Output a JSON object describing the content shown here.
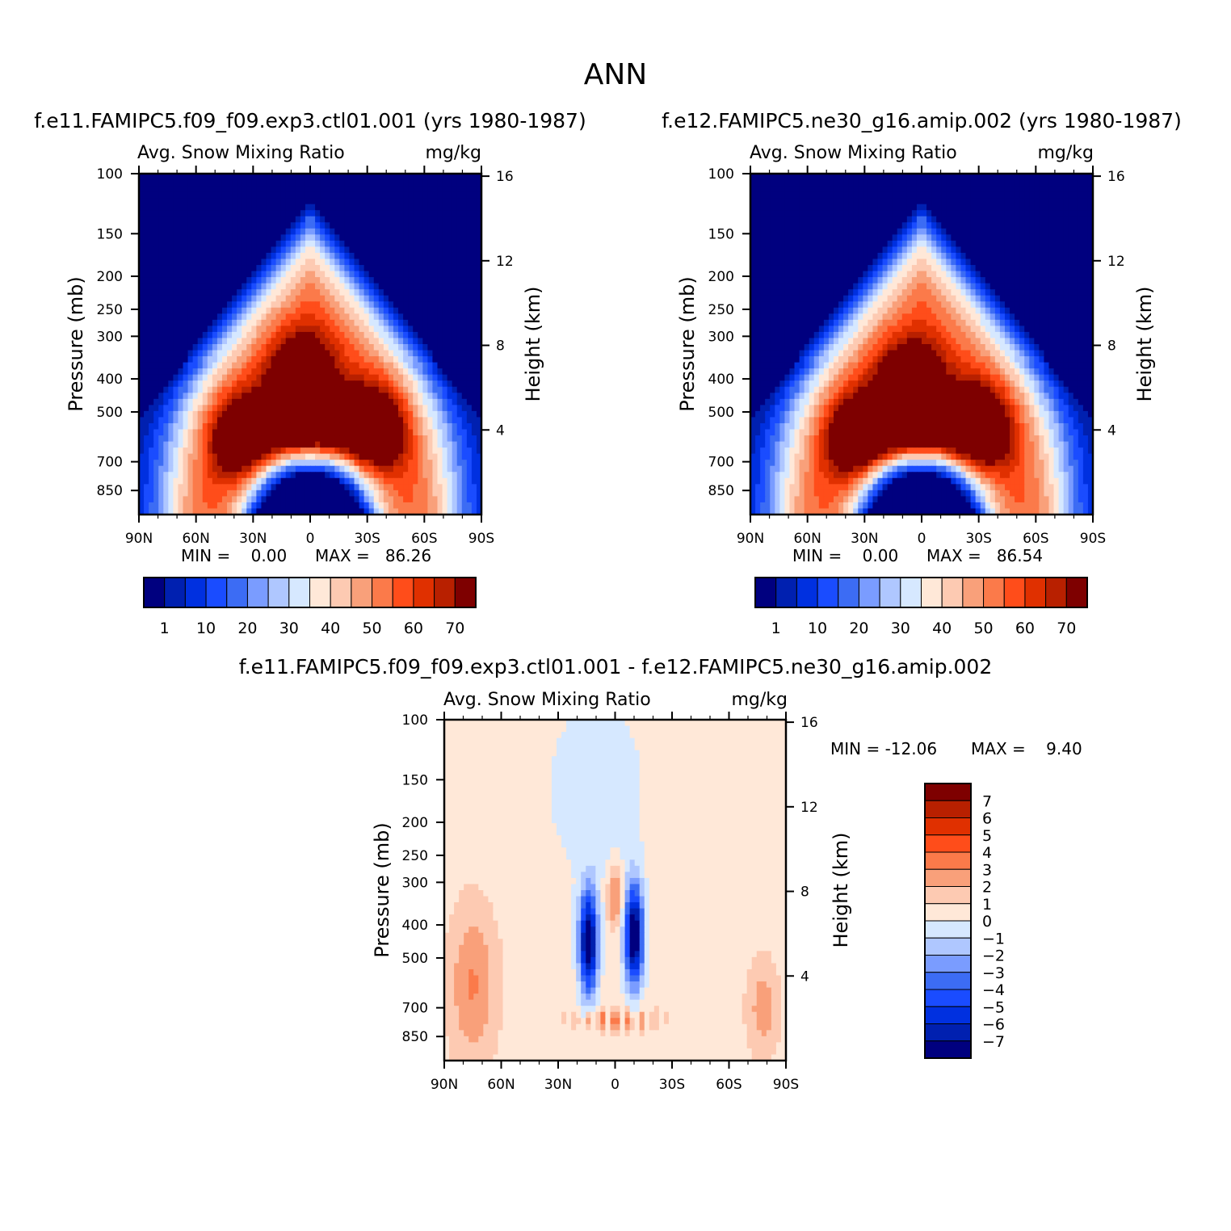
{
  "figure": {
    "title": "ANN"
  },
  "colors": {
    "abs_levels": [
      "#00007f",
      "#0020b0",
      "#0030e0",
      "#1a4cff",
      "#3c6cf4",
      "#7a9cff",
      "#afc7ff",
      "#d6e8ff",
      "#ffe8d8",
      "#fdcab2",
      "#f9a07a",
      "#fb7a4a",
      "#ff4d1a",
      "#e03000",
      "#b82000",
      "#7e0000"
    ],
    "diff_levels": [
      "#00007f",
      "#0020b0",
      "#0030e0",
      "#1a4cff",
      "#3c6cf4",
      "#7a9cff",
      "#afc7ff",
      "#d6e8ff",
      "#ffe8d8",
      "#fdcab2",
      "#f9a07a",
      "#fb7a4a",
      "#ff4d1a",
      "#e03000",
      "#b82000",
      "#7e0000"
    ]
  },
  "chart_data": [
    {
      "type": "heatmap",
      "title": "f.e11.FAMIPC5.f09_f09.exp3.ctl01.001 (yrs 1980-1987)",
      "left_string": "Avg. Snow Mixing Ratio",
      "right_string": "mg/kg",
      "ylabel": "Pressure (mb)",
      "ylabel_right": "Height (km)",
      "x_ticks": [
        "90N",
        "60N",
        "30N",
        "0",
        "30S",
        "60S",
        "90S"
      ],
      "y_ticks": [
        "100",
        "150",
        "200",
        "250",
        "300",
        "400",
        "500",
        "700",
        "850"
      ],
      "y_values": [
        100,
        150,
        200,
        250,
        300,
        400,
        500,
        700,
        850
      ],
      "y_right_ticks": [
        "16",
        "12",
        "8",
        "4"
      ],
      "min_text": "MIN =    0.00",
      "max_text": "MAX =   86.26",
      "min": 0.0,
      "max": 86.26,
      "colorbar_labels": [
        "1",
        "10",
        "20",
        "30",
        "40",
        "50",
        "60",
        "70"
      ],
      "blobs": [
        {
          "lat": 35,
          "p": 600,
          "value": 80
        },
        {
          "lat": -33,
          "p": 560,
          "value": 80
        },
        {
          "lat": 5,
          "p": 400,
          "value": 78
        }
      ]
    },
    {
      "type": "heatmap",
      "title": "f.e12.FAMIPC5.ne30_g16.amip.002 (yrs 1980-1987)",
      "left_string": "Avg. Snow Mixing Ratio",
      "right_string": "mg/kg",
      "ylabel": "Pressure (mb)",
      "ylabel_right": "Height (km)",
      "x_ticks": [
        "90N",
        "60N",
        "30N",
        "0",
        "30S",
        "60S",
        "90S"
      ],
      "y_ticks": [
        "100",
        "150",
        "200",
        "250",
        "300",
        "400",
        "500",
        "700",
        "850"
      ],
      "y_values": [
        100,
        150,
        200,
        250,
        300,
        400,
        500,
        700,
        850
      ],
      "y_right_ticks": [
        "16",
        "12",
        "8",
        "4"
      ],
      "min_text": "MIN =    0.00",
      "max_text": "MAX =   86.54",
      "min": 0.0,
      "max": 86.54,
      "colorbar_labels": [
        "1",
        "10",
        "20",
        "30",
        "40",
        "50",
        "60",
        "70"
      ],
      "blobs": [
        {
          "lat": 33,
          "p": 600,
          "value": 80
        },
        {
          "lat": -30,
          "p": 560,
          "value": 82
        },
        {
          "lat": 7,
          "p": 430,
          "value": 80
        }
      ]
    },
    {
      "type": "heatmap",
      "title": "f.e11.FAMIPC5.f09_f09.exp3.ctl01.001 - f.e12.FAMIPC5.ne30_g16.amip.002",
      "left_string": "Avg. Snow Mixing Ratio",
      "right_string": "mg/kg",
      "ylabel": "Pressure (mb)",
      "ylabel_right": "Height (km)",
      "x_ticks": [
        "90N",
        "60N",
        "30N",
        "0",
        "30S",
        "60S",
        "90S"
      ],
      "y_ticks": [
        "100",
        "150",
        "200",
        "250",
        "300",
        "400",
        "500",
        "700",
        "850"
      ],
      "y_values": [
        100,
        150,
        200,
        250,
        300,
        400,
        500,
        700,
        850
      ],
      "y_right_ticks": [
        "16",
        "12",
        "8",
        "4"
      ],
      "min_text": "MIN = -12.06",
      "max_text": "MAX =    9.40",
      "min": -12.06,
      "max": 9.4,
      "colorbar_labels": [
        "7",
        "6",
        "5",
        "4",
        "3",
        "2",
        "1",
        "0",
        "-1",
        "-2",
        "-3",
        "-4",
        "-5",
        "-6",
        "-7"
      ]
    }
  ]
}
